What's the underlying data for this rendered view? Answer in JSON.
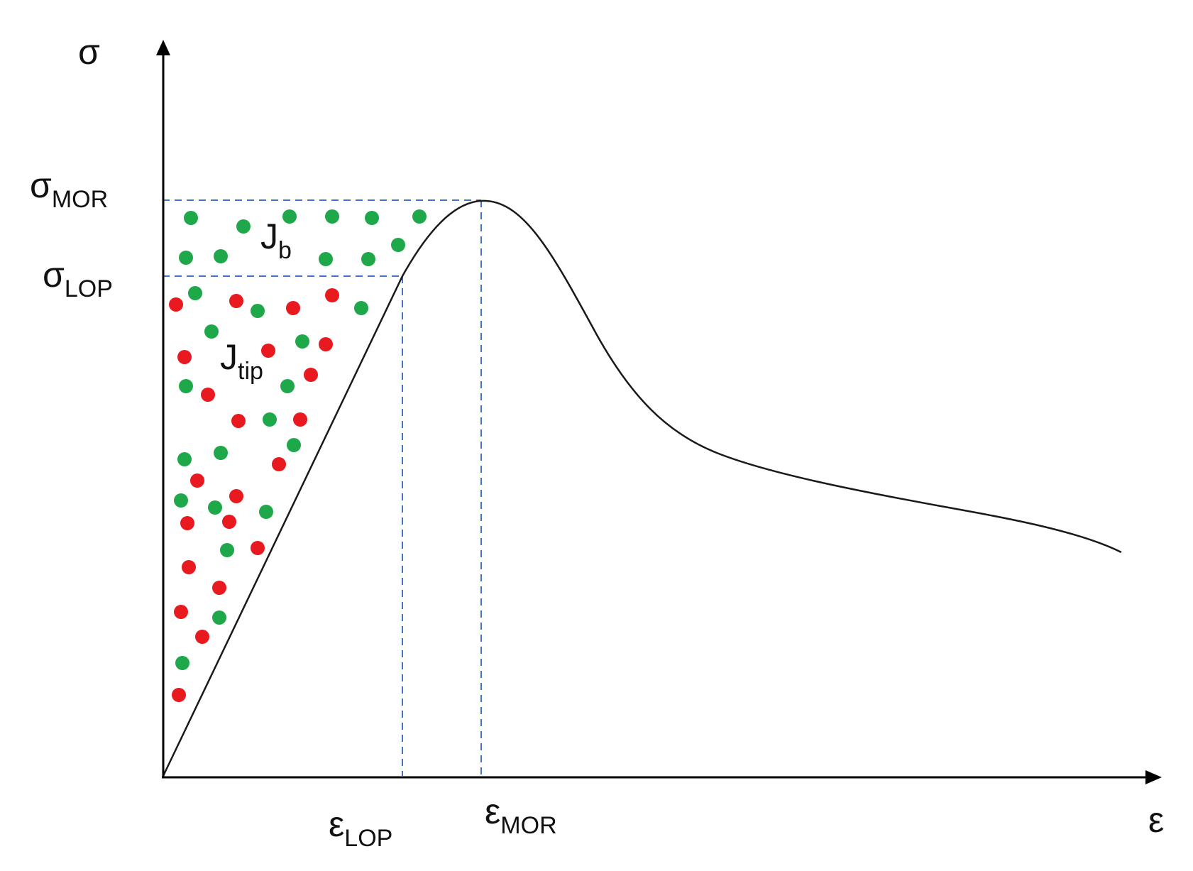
{
  "labels": {
    "y_axis": "σ",
    "x_axis": "ε",
    "sigma_mor": {
      "main": "σ",
      "sub": "MOR"
    },
    "sigma_lop": {
      "main": "σ",
      "sub": "LOP"
    },
    "eps_lop": {
      "main": "ε",
      "sub": "LOP"
    },
    "eps_mor": {
      "main": "ε",
      "sub": "MOR"
    },
    "jb": {
      "main": "J",
      "sub": "b"
    },
    "jtip": {
      "main": "J",
      "sub": "tip"
    }
  },
  "colors": {
    "green_dot": "#1fa84a",
    "red_dot": "#e8191f",
    "dashed_guide": "#4472c4",
    "curve": "#1a1a1a",
    "axis": "#000000"
  }
}
